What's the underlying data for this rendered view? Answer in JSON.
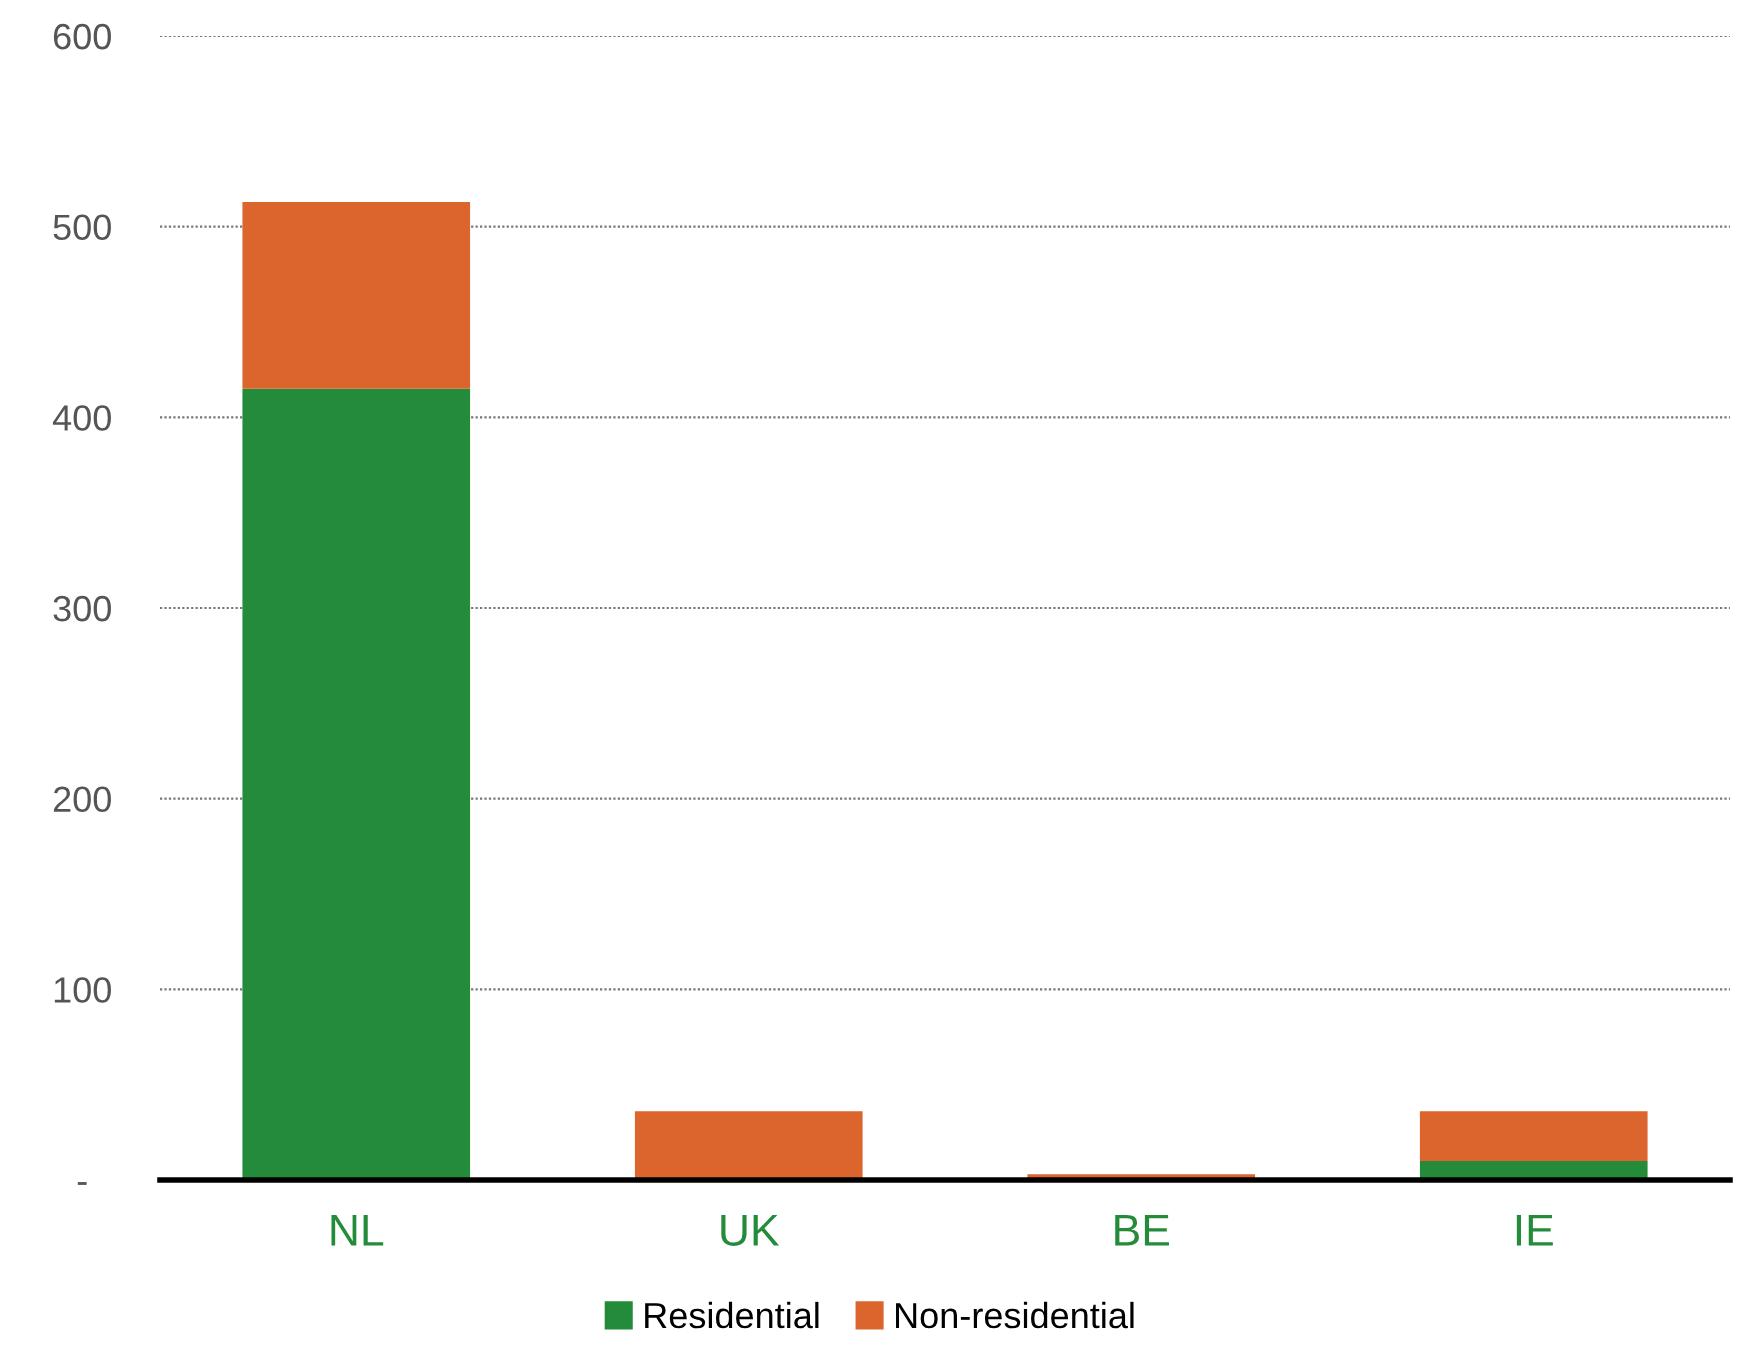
{
  "chart_data": {
    "type": "bar",
    "stacked": true,
    "categories": [
      "NL",
      "UK",
      "BE",
      "IE"
    ],
    "series": [
      {
        "name": "Residential",
        "color": "#238b3a",
        "values": [
          415,
          0,
          0,
          10
        ]
      },
      {
        "name": "Non-residential",
        "color": "#dc652e",
        "values": [
          98,
          36,
          3,
          26
        ]
      }
    ],
    "ylim": [
      0,
      600
    ],
    "yticks": [
      {
        "value": 0,
        "label": "-"
      },
      100,
      200,
      300,
      400,
      500,
      600
    ],
    "grid": "y",
    "legend": "bottom"
  }
}
